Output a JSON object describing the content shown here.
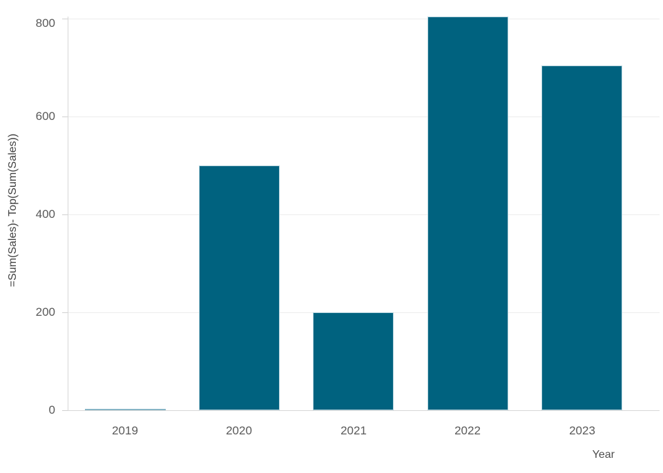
{
  "chart_data": {
    "type": "bar",
    "title": "",
    "categories": [
      "2019",
      "2020",
      "2021",
      "2022",
      "2023"
    ],
    "values": [
      0,
      500,
      200,
      805,
      705
    ],
    "xlabel": "Year",
    "ylabel": "=Sum(Sales)- Top(Sum(Sales))",
    "yticks": [
      0,
      200,
      400,
      600,
      800
    ],
    "ylim": [
      0,
      805
    ],
    "grid": true,
    "legend": false,
    "bar_color": "#00627f"
  },
  "colors": {
    "bar": "#00627f",
    "bar_stroke": "#b7d4de",
    "bar_zero": "#86b5c6",
    "gridline": "#ececec",
    "axis_line": "#d7d7d7",
    "tick_mark": "#d0d0d0",
    "tick_label": "#595959",
    "axis_title": "#4d4d4d",
    "y_axis_title": "#3f3f3f",
    "background": "#ffffff"
  }
}
